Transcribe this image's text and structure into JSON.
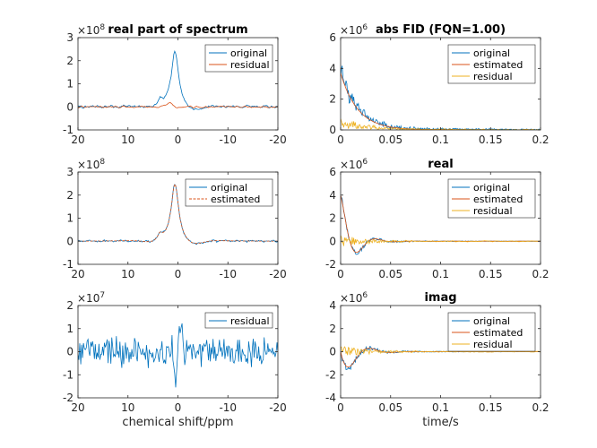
{
  "figure": {
    "background": "#ffffff",
    "axis_color": "#262626"
  },
  "colors": {
    "original": "#0072BD",
    "estimated": "#D95319",
    "residual": "#EDB120"
  },
  "chart_data": [
    {
      "id": "p1",
      "type": "line",
      "title": "real part of spectrum",
      "xlabel": "",
      "ylabel": "",
      "exponent_label": "×10",
      "exponent": "8",
      "xlim": [
        20,
        -20
      ],
      "ylim": [
        -1,
        3
      ],
      "xticks": [
        20,
        10,
        0,
        -10,
        -20
      ],
      "xticklabels": [
        "20",
        "10",
        "0",
        "-10",
        "-20"
      ],
      "yticks": [
        -1,
        0,
        1,
        2,
        3
      ],
      "yticklabels": [
        "-1",
        "0",
        "1",
        "2",
        "3"
      ],
      "legend": "top-right",
      "series": [
        {
          "name": "original",
          "color": "#0072BD",
          "kind": "spectrum_peak",
          "peak": 2.4,
          "peak_x": 0.6,
          "noise": 0.05
        },
        {
          "name": "residual",
          "color": "#D95319",
          "kind": "spectrum_residual",
          "noise": 0.05
        }
      ]
    },
    {
      "id": "p2",
      "type": "line",
      "title": "",
      "xlabel": "",
      "ylabel": "",
      "exponent_label": "×10",
      "exponent": "8",
      "xlim": [
        20,
        -20
      ],
      "ylim": [
        -1,
        3
      ],
      "xticks": [
        20,
        10,
        0,
        -10,
        -20
      ],
      "xticklabels": [
        "20",
        "10",
        "0",
        "-10",
        "-20"
      ],
      "yticks": [
        -1,
        0,
        1,
        2,
        3
      ],
      "yticklabels": [
        "-1",
        "0",
        "1",
        "2",
        "3"
      ],
      "legend": "top-right",
      "series": [
        {
          "name": "original",
          "color": "#0072BD",
          "kind": "spectrum_peak",
          "peak": 2.5,
          "peak_x": 0.6,
          "noise": 0.04
        },
        {
          "name": "estimated",
          "color": "#D95319",
          "kind": "spectrum_smooth",
          "peak": 2.5,
          "peak_x": 0.6,
          "dashed": true
        }
      ]
    },
    {
      "id": "p3",
      "type": "line",
      "title": "",
      "xlabel": "chemical shift/ppm",
      "ylabel": "",
      "exponent_label": "×10",
      "exponent": "7",
      "xlim": [
        20,
        -20
      ],
      "ylim": [
        -2,
        2
      ],
      "xticks": [
        20,
        10,
        0,
        -10,
        -20
      ],
      "xticklabels": [
        "20",
        "10",
        "0",
        "-10",
        "-20"
      ],
      "yticks": [
        -2,
        -1,
        0,
        1,
        2
      ],
      "yticklabels": [
        "-2",
        "-1",
        "0",
        "1",
        "2"
      ],
      "legend": "top-right",
      "series": [
        {
          "name": "residual",
          "color": "#0072BD",
          "kind": "noise",
          "amp": 0.75
        }
      ]
    },
    {
      "id": "p4",
      "type": "line",
      "title": "abs FID (FQN=1.00)",
      "xlabel": "",
      "ylabel": "",
      "exponent_label": "×10",
      "exponent": "6",
      "xlim": [
        0,
        0.2
      ],
      "ylim": [
        0,
        6
      ],
      "xticks": [
        0,
        0.05,
        0.1,
        0.15,
        0.2
      ],
      "xticklabels": [
        "0",
        "0.05",
        "0.1",
        "0.15",
        "0.2"
      ],
      "yticks": [
        0,
        2,
        4,
        6
      ],
      "yticklabels": [
        "0",
        "2",
        "4",
        "6"
      ],
      "legend": "top-right",
      "series": [
        {
          "name": "original",
          "color": "#0072BD",
          "kind": "fid_abs",
          "amp": 3.9,
          "tau": 0.017,
          "noise": 0.35
        },
        {
          "name": "estimated",
          "color": "#D95319",
          "kind": "fid_abs_est",
          "amp": 3.7,
          "tau": 0.017
        },
        {
          "name": "residual",
          "color": "#EDB120",
          "kind": "fid_abs_res",
          "amp": 0.8,
          "tau": 0.03
        }
      ]
    },
    {
      "id": "p5",
      "type": "line",
      "title": "real",
      "xlabel": "",
      "ylabel": "",
      "exponent_label": "×10",
      "exponent": "6",
      "xlim": [
        0,
        0.2
      ],
      "ylim": [
        -2,
        6
      ],
      "xticks": [
        0,
        0.05,
        0.1,
        0.15,
        0.2
      ],
      "xticklabels": [
        "0",
        "0.05",
        "0.1",
        "0.15",
        "0.2"
      ],
      "yticks": [
        -2,
        0,
        2,
        4,
        6
      ],
      "yticklabels": [
        "-2",
        "0",
        "2",
        "4",
        "6"
      ],
      "legend": "top-right",
      "series": [
        {
          "name": "original",
          "color": "#0072BD",
          "kind": "fid_real",
          "amp": 4.1,
          "tau": 0.012,
          "noise": 0.25
        },
        {
          "name": "estimated",
          "color": "#D95319",
          "kind": "fid_real_est",
          "amp": 4.0,
          "tau": 0.012
        },
        {
          "name": "residual",
          "color": "#EDB120",
          "kind": "fid_res",
          "amp": 0.5,
          "tau": 0.03
        }
      ]
    },
    {
      "id": "p6",
      "type": "line",
      "title": "imag",
      "xlabel": "time/s",
      "ylabel": "",
      "exponent_label": "×10",
      "exponent": "6",
      "xlim": [
        0,
        0.2
      ],
      "ylim": [
        -4,
        4
      ],
      "xticks": [
        0,
        0.05,
        0.1,
        0.15,
        0.2
      ],
      "xticklabels": [
        "0",
        "0.05",
        "0.1",
        "0.15",
        "0.2"
      ],
      "yticks": [
        -4,
        -2,
        0,
        2,
        4
      ],
      "yticklabels": [
        "-4",
        "-2",
        "0",
        "2",
        "4"
      ],
      "legend": "top-right",
      "series": [
        {
          "name": "original",
          "color": "#0072BD",
          "kind": "fid_imag",
          "amp": -2.2,
          "tau": 0.014,
          "noise": 0.3
        },
        {
          "name": "estimated",
          "color": "#D95319",
          "kind": "fid_imag_est",
          "amp": -2.1,
          "tau": 0.014
        },
        {
          "name": "residual",
          "color": "#EDB120",
          "kind": "fid_res",
          "amp": 0.5,
          "tau": 0.03
        }
      ]
    }
  ]
}
